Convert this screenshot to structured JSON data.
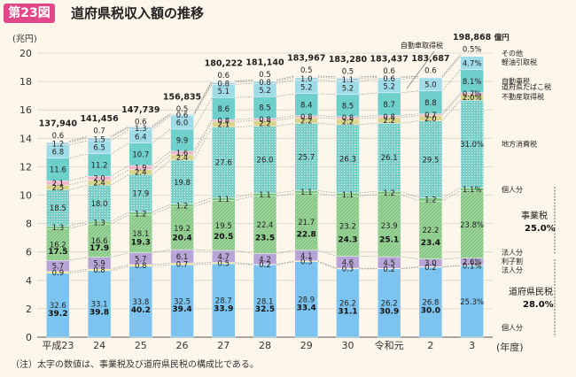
{
  "header": {
    "badge": "第23図",
    "title": "道府県税収入額の推移"
  },
  "note": "（注）太字の数値は、事業税及び道府県民税の構成比である。",
  "chart_data": {
    "type": "bar",
    "stacked": true,
    "ylabel": "(兆円)",
    "xlabel": "(年度)",
    "ylim": [
      0,
      20
    ],
    "yticks": [
      0,
      2,
      4,
      6,
      8,
      10,
      12,
      14,
      16,
      18,
      20
    ],
    "grid": true,
    "categories": [
      "平成23",
      "24",
      "25",
      "26",
      "27",
      "28",
      "29",
      "30",
      "令和元",
      "2",
      "3"
    ],
    "totals": [
      "137,940",
      "141,456",
      "147,739",
      "156,835",
      "180,222",
      "181,140",
      "183,967",
      "183,280",
      "183,437",
      "183,687",
      "198,868"
    ],
    "totals_unit": "億円",
    "totals_values": [
      13.794,
      14.1456,
      14.7739,
      15.6835,
      18.0222,
      18.114,
      18.3967,
      18.328,
      18.3437,
      18.3687,
      19.8868
    ],
    "series": [
      {
        "name": "個人分",
        "group": "道府県民税",
        "color": "#7cc4ef",
        "pct": [
          32.6,
          33.1,
          33.8,
          32.5,
          28.7,
          28.1,
          28.9,
          26.2,
          26.2,
          26.8,
          25.3
        ]
      },
      {
        "name": "利子割",
        "group": "道府県民税",
        "color": "#f3e57a",
        "pct": [
          0.9,
          0.8,
          0.8,
          0.7,
          0.5,
          0.2,
          0.3,
          0.3,
          0.2,
          0.2,
          0.1
        ]
      },
      {
        "name": "法人分",
        "group": "道府県民税",
        "color": "#b6a5d6",
        "pct": [
          5.7,
          5.9,
          5.7,
          6.1,
          4.7,
          4.2,
          4.1,
          4.6,
          4.5,
          3.0,
          2.6
        ]
      },
      {
        "name": "法人分",
        "group": "事業税",
        "color": "#9dd49a",
        "pct": [
          16.2,
          16.6,
          18.1,
          19.2,
          19.5,
          22.4,
          21.7,
          23.2,
          23.9,
          22.2,
          23.8
        ]
      },
      {
        "name": "個人分",
        "group": "事業税",
        "color": "#7bc582",
        "pct": [
          1.3,
          1.3,
          1.2,
          1.2,
          1.1,
          1.1,
          1.1,
          1.1,
          1.2,
          1.2,
          1.1
        ]
      },
      {
        "name": "地方消費税",
        "color": "#79cec8",
        "pct": [
          18.5,
          18.0,
          17.9,
          19.8,
          27.6,
          26.0,
          25.7,
          26.3,
          26.1,
          29.5,
          31.0
        ]
      },
      {
        "name": "不動産取得税",
        "color": "#d8d48e",
        "pct": [
          2.5,
          2.4,
          2.4,
          2.4,
          2.1,
          2.2,
          2.2,
          2.2,
          2.2,
          2.0,
          2.0
        ]
      },
      {
        "name": "道府県たばこ税",
        "color": "#eeb6c8",
        "pct": [
          2.1,
          2.0,
          1.9,
          1.6,
          0.8,
          0.8,
          0.8,
          0.8,
          0.8,
          0.7,
          0.7
        ]
      },
      {
        "name": "自動車税",
        "color": "#6fcfcb",
        "pct": [
          11.6,
          11.2,
          10.7,
          9.9,
          8.6,
          8.5,
          8.4,
          8.5,
          8.7,
          8.8,
          8.1
        ]
      },
      {
        "name": "軽油引取税",
        "color": "#a0dbe8",
        "pct": [
          6.8,
          6.5,
          6.4,
          6.0,
          5.1,
          5.2,
          5.2,
          5.2,
          5.2,
          5.0,
          4.7
        ]
      },
      {
        "name": "自動車取得税",
        "color": "#aad3e0",
        "pct": [
          1.2,
          1.5,
          1.3,
          0.6,
          0.8,
          0.8,
          1.0,
          1.1,
          0.6,
          null,
          null
        ]
      },
      {
        "name": "その他",
        "color": "#f2f2ec",
        "pct": [
          0.6,
          0.7,
          0.6,
          0.5,
          0.6,
          0.5,
          0.5,
          0.5,
          0.6,
          0.6,
          0.5
        ]
      }
    ],
    "bold_pct": {
      "事業税": [
        17.5,
        17.9,
        19.3,
        20.4,
        20.5,
        23.5,
        22.8,
        24.3,
        25.1,
        23.4,
        25.0
      ],
      "道府県民税": [
        39.2,
        39.8,
        40.2,
        39.4,
        33.9,
        32.5,
        33.4,
        31.1,
        30.9,
        30.0,
        28.0
      ]
    },
    "legend": {
      "placement": "right",
      "labels": [
        "その他",
        "軽油引取税",
        "自動車税",
        "道府県たばこ税",
        "不動産取得税",
        "地方消費税",
        "個人分",
        "事業税",
        "法人分",
        "法人分",
        "利子割",
        "道府県民税",
        "個人分",
        "自動車取得税"
      ]
    }
  }
}
